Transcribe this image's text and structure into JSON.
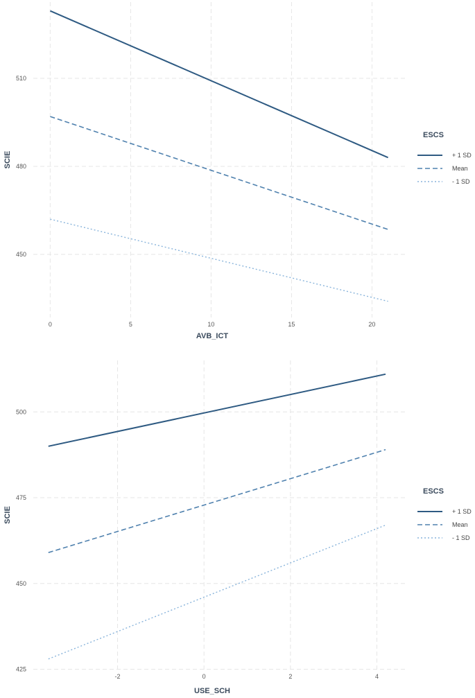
{
  "chart_data": [
    {
      "type": "line",
      "xlabel": "AVB_ICT",
      "ylabel": "SCIE",
      "x_ticks": [
        0,
        5,
        10,
        15,
        20
      ],
      "y_ticks": [
        450,
        480,
        510
      ],
      "xlim": [
        -1.05,
        22.05
      ],
      "ylim": [
        428.5,
        536
      ],
      "grid": true,
      "legend": {
        "title": "ESCS",
        "position": "right"
      },
      "series": [
        {
          "name": "+ 1 SD",
          "dash": "solid",
          "color": "#2e5a82",
          "x": [
            0,
            21
          ],
          "y": [
            533,
            483
          ]
        },
        {
          "name": "Mean",
          "dash": "dashed",
          "color": "#4f81ae",
          "x": [
            0,
            21
          ],
          "y": [
            497,
            458.5
          ]
        },
        {
          "name": "- 1 SD",
          "dash": "dotted",
          "color": "#89b4db",
          "x": [
            0,
            21
          ],
          "y": [
            462,
            434
          ]
        }
      ]
    },
    {
      "type": "line",
      "xlabel": "USE_SCH",
      "ylabel": "SCIE",
      "x_ticks": [
        -2,
        0,
        2,
        4
      ],
      "y_ticks": [
        425,
        450,
        475,
        500
      ],
      "xlim": [
        -3.95,
        4.65
      ],
      "ylim": [
        424.9,
        515
      ],
      "grid": true,
      "legend": {
        "title": "ESCS",
        "position": "right"
      },
      "series": [
        {
          "name": "+ 1 SD",
          "dash": "solid",
          "color": "#2e5a82",
          "x": [
            -3.6,
            4.2
          ],
          "y": [
            490,
            511
          ]
        },
        {
          "name": "Mean",
          "dash": "dashed",
          "color": "#4f81ae",
          "x": [
            -3.6,
            4.2
          ],
          "y": [
            459,
            489
          ]
        },
        {
          "name": "- 1 SD",
          "dash": "dotted",
          "color": "#89b4db",
          "x": [
            -3.6,
            4.2
          ],
          "y": [
            428,
            467
          ]
        }
      ]
    }
  ]
}
